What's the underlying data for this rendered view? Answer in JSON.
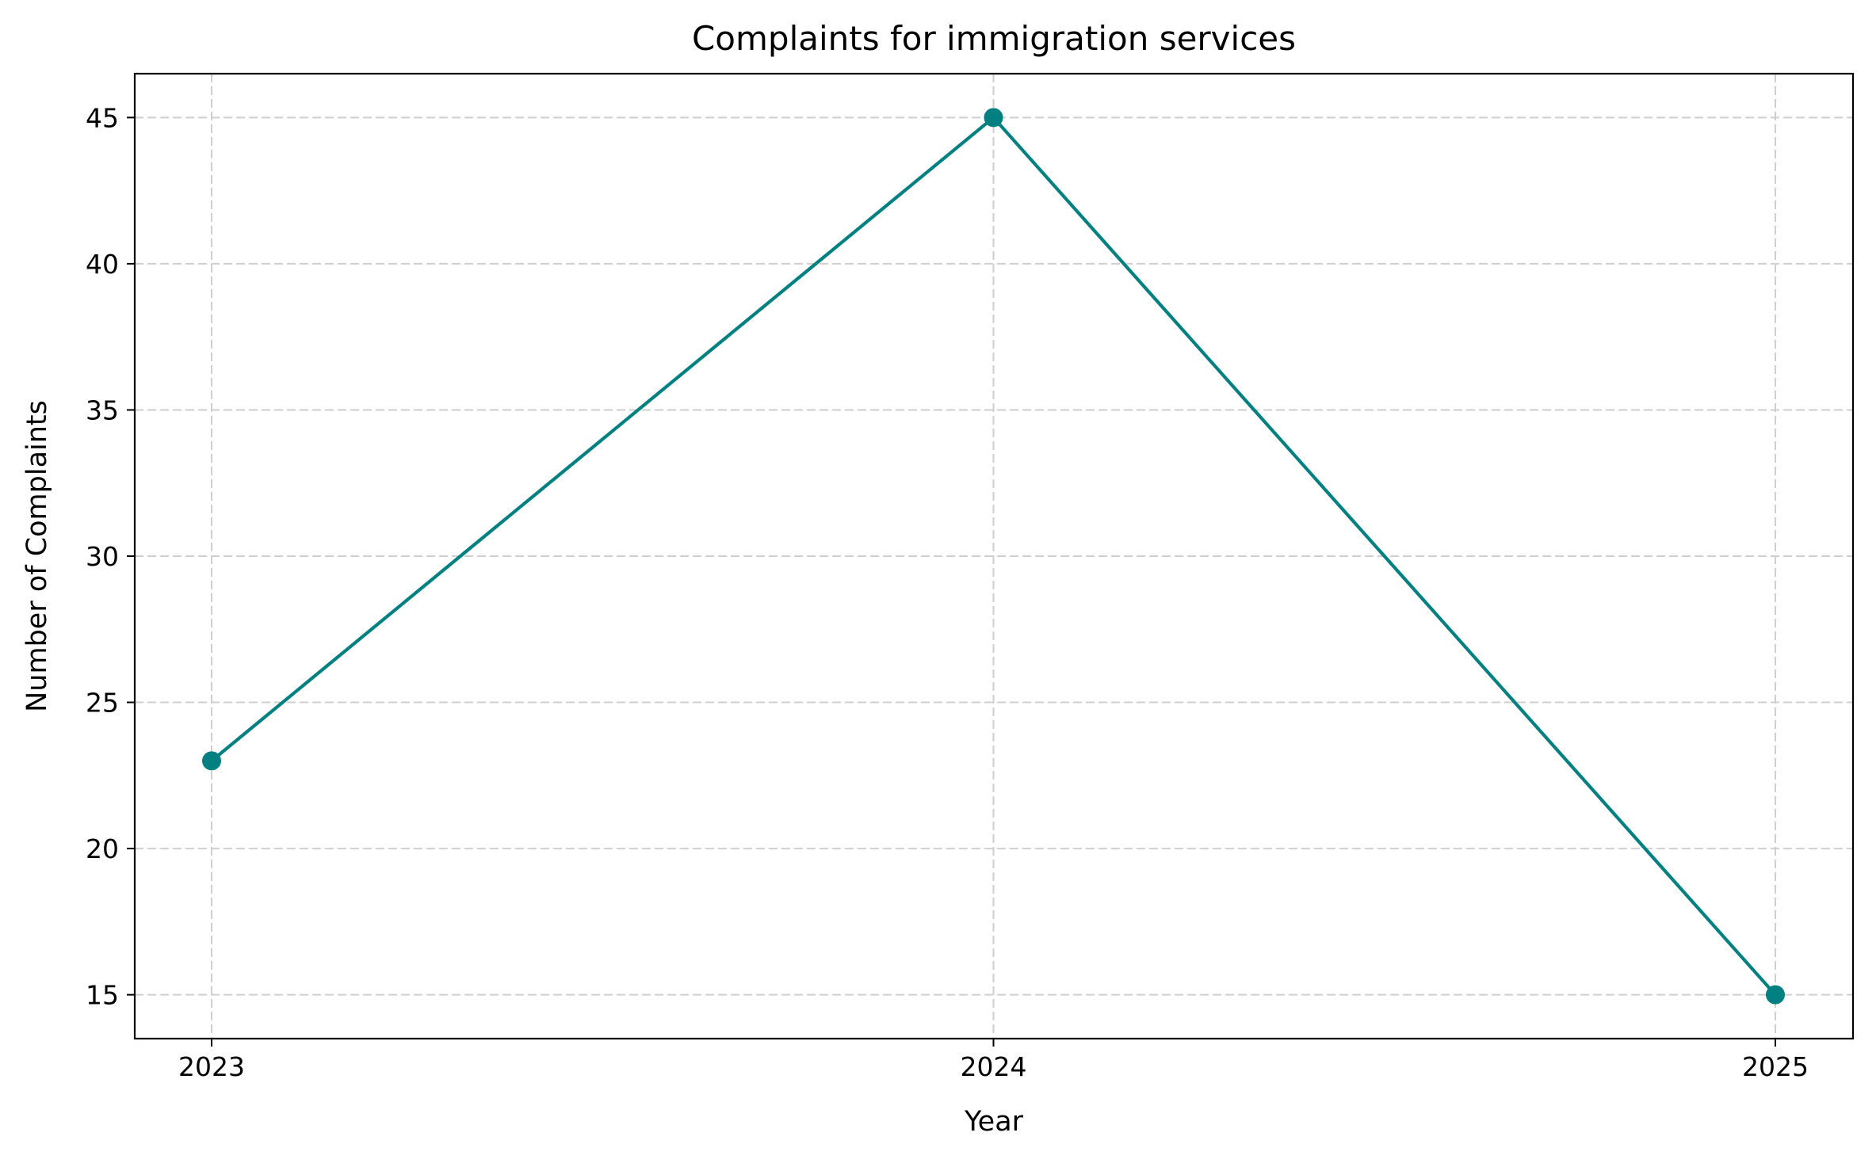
{
  "chart_data": {
    "type": "line",
    "title": "Complaints for immigration services",
    "xlabel": "Year",
    "ylabel": "Number of Complaints",
    "categories": [
      "2023",
      "2024",
      "2025"
    ],
    "series": [
      {
        "values": [
          23,
          45,
          15
        ],
        "color": "#008080",
        "marker": "circle"
      }
    ],
    "ylim": [
      13.5,
      46.5
    ],
    "y_ticks": [
      15,
      20,
      25,
      30,
      35,
      40,
      45
    ],
    "grid": true,
    "grid_style": "dashed"
  }
}
